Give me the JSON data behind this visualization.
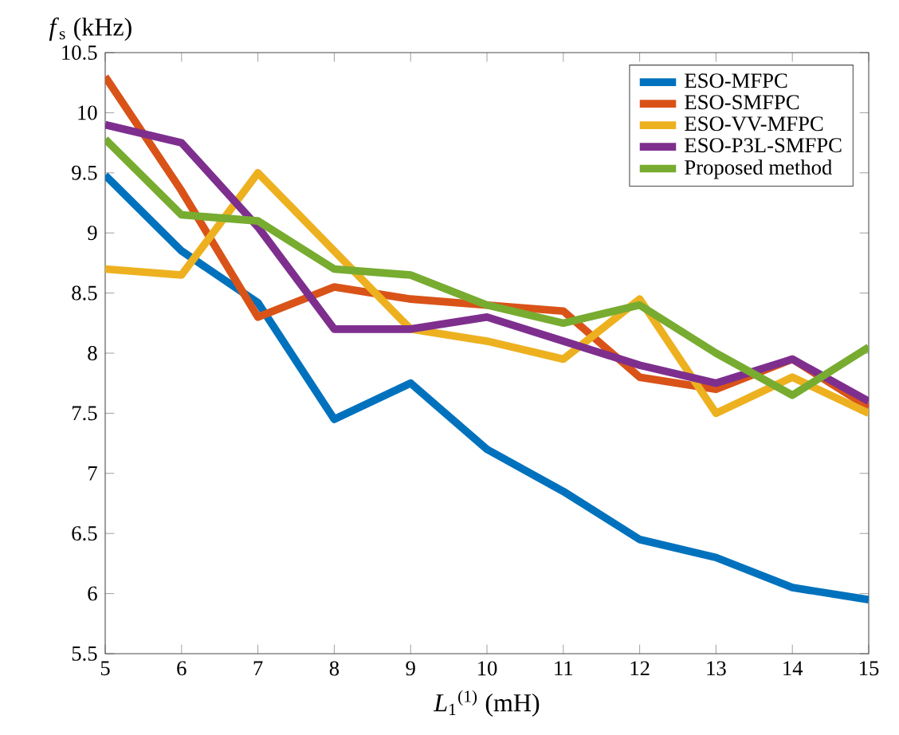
{
  "chart_data": {
    "type": "line",
    "xlabel": "*L*$_{1}$$^{(1)}$ (mH)",
    "ylabel": "*f*$_{s}$ (kHz)",
    "x": [
      5,
      6,
      7,
      8,
      9,
      10,
      11,
      12,
      13,
      14,
      15
    ],
    "xlim": [
      5,
      15
    ],
    "ylim": [
      5.5,
      10.5
    ],
    "xticks": [
      5,
      6,
      7,
      8,
      9,
      10,
      11,
      12,
      13,
      14,
      15
    ],
    "yticks": [
      5.5,
      6,
      6.5,
      7,
      7.5,
      8,
      8.5,
      9,
      9.5,
      10,
      10.5
    ],
    "legend": "top right",
    "line_style": "solid",
    "series": [
      {
        "name": "ESO-MFPC",
        "color": "#0072bd",
        "values": [
          9.48,
          8.85,
          8.42,
          7.45,
          7.75,
          7.2,
          6.85,
          6.45,
          6.3,
          6.05,
          5.95
        ]
      },
      {
        "name": "ESO-SMFPC",
        "color": "#d95319",
        "values": [
          10.3,
          9.35,
          8.3,
          8.55,
          8.45,
          8.4,
          8.35,
          7.8,
          7.7,
          7.95,
          7.55
        ]
      },
      {
        "name": "ESO-VV-MFPC",
        "color": "#edb120",
        "values": [
          8.7,
          8.65,
          9.5,
          8.85,
          8.2,
          8.1,
          7.95,
          8.45,
          7.5,
          7.8,
          7.5
        ]
      },
      {
        "name": "ESO-P3L-SMFPC",
        "color": "#7e2f8e",
        "values": [
          9.9,
          9.75,
          9.05,
          8.2,
          8.2,
          8.3,
          8.1,
          7.9,
          7.75,
          7.95,
          7.6
        ]
      },
      {
        "name": "Proposed method",
        "color": "#77ac30",
        "values": [
          9.78,
          9.15,
          9.1,
          8.7,
          8.65,
          8.4,
          8.25,
          8.4,
          8.0,
          7.65,
          8.05
        ]
      }
    ]
  }
}
